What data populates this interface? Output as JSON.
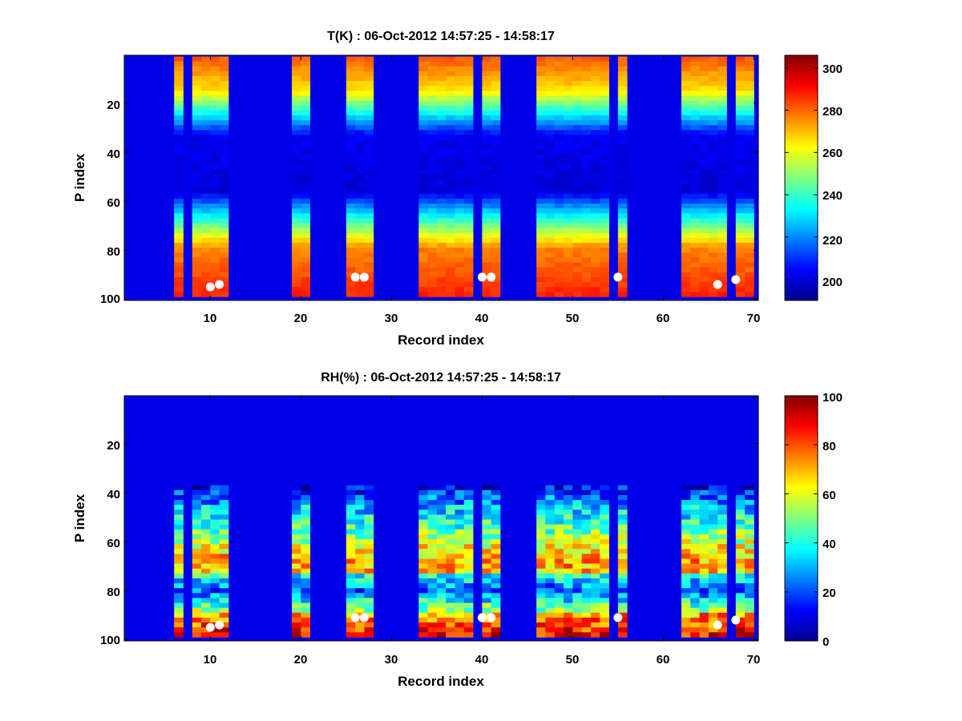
{
  "chart_data": [
    {
      "type": "heatmap",
      "title": "T(K) : 06-Oct-2012 14:57:25 - 14:58:17",
      "xlabel": "Record index",
      "ylabel": "P index",
      "xlim": [
        0.5,
        70.5
      ],
      "ylim": [
        0.5,
        100.5
      ],
      "x_ticks": [
        "10",
        "20",
        "30",
        "40",
        "50",
        "60",
        "70"
      ],
      "y_ticks": [
        "20",
        "40",
        "60",
        "80",
        "100"
      ],
      "colorbar": {
        "min": 190,
        "max": 306,
        "ticks": [
          "200",
          "220",
          "240",
          "260",
          "280",
          "300"
        ]
      },
      "profile_records": [
        [
          6,
          6
        ],
        [
          8,
          11
        ],
        [
          19,
          20
        ],
        [
          25,
          27
        ],
        [
          33,
          38
        ],
        [
          40,
          40
        ],
        [
          41,
          41
        ],
        [
          46,
          53
        ],
        [
          55,
          55
        ],
        [
          62,
          66
        ],
        [
          68,
          69
        ]
      ],
      "profile_p_range": [
        1,
        98
      ],
      "profile_shape": {
        "top_K": 281,
        "mid_K": 200,
        "bottom_K": 288
      },
      "markers": [
        {
          "x": 10,
          "y": 95
        },
        {
          "x": 11,
          "y": 94
        },
        {
          "x": 26,
          "y": 91
        },
        {
          "x": 27,
          "y": 91
        },
        {
          "x": 40,
          "y": 91
        },
        {
          "x": 41,
          "y": 91
        },
        {
          "x": 55,
          "y": 91
        },
        {
          "x": 66,
          "y": 94
        },
        {
          "x": 68,
          "y": 92
        }
      ]
    },
    {
      "type": "heatmap",
      "title": "RH(%) : 06-Oct-2012 14:57:25 - 14:58:17",
      "xlabel": "Record index",
      "ylabel": "P index",
      "xlim": [
        0.5,
        70.5
      ],
      "ylim": [
        0.5,
        100.5
      ],
      "x_ticks": [
        "10",
        "20",
        "30",
        "40",
        "50",
        "60",
        "70"
      ],
      "y_ticks": [
        "20",
        "40",
        "60",
        "80",
        "100"
      ],
      "colorbar": {
        "min": 0,
        "max": 100,
        "ticks": [
          "0",
          "20",
          "40",
          "60",
          "80",
          "100"
        ]
      },
      "profile_records": [
        [
          6,
          6
        ],
        [
          8,
          11
        ],
        [
          19,
          20
        ],
        [
          25,
          27
        ],
        [
          33,
          38
        ],
        [
          40,
          40
        ],
        [
          41,
          41
        ],
        [
          46,
          53
        ],
        [
          55,
          55
        ],
        [
          62,
          66
        ],
        [
          68,
          69
        ]
      ],
      "profile_p_range": [
        37,
        98
      ],
      "markers": [
        {
          "x": 10,
          "y": 95
        },
        {
          "x": 11,
          "y": 94
        },
        {
          "x": 26,
          "y": 91
        },
        {
          "x": 27,
          "y": 91
        },
        {
          "x": 40,
          "y": 91
        },
        {
          "x": 41,
          "y": 91
        },
        {
          "x": 55,
          "y": 91
        },
        {
          "x": 66,
          "y": 94
        },
        {
          "x": 68,
          "y": 92
        }
      ]
    }
  ]
}
